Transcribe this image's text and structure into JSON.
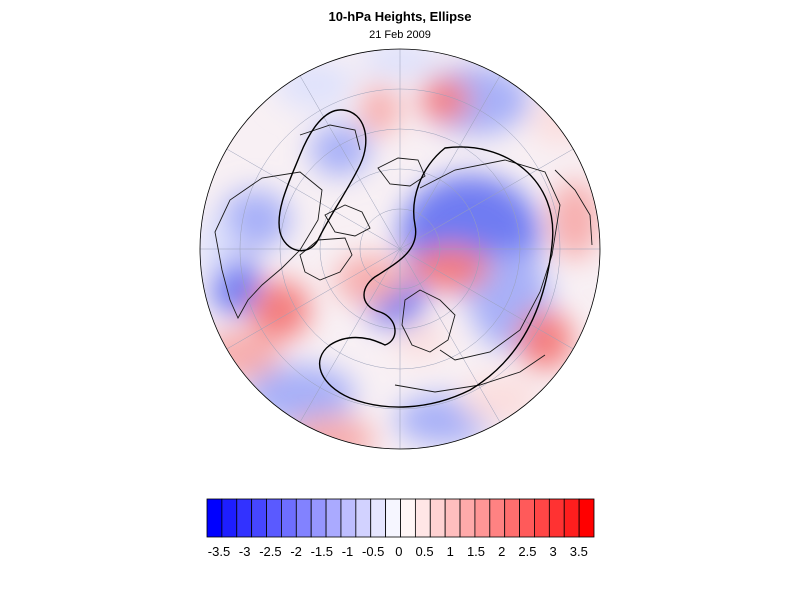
{
  "title": "10-hPa Heights, Ellipse",
  "subtitle": "21 Feb 2009",
  "colorbar": {
    "colors": [
      "#0000ff",
      "#1e1eff",
      "#3232ff",
      "#4646ff",
      "#5a5aff",
      "#6e6eff",
      "#8282ff",
      "#9696ff",
      "#aaaaff",
      "#bebeff",
      "#d2d2ff",
      "#e6e6ff",
      "#f6f6ff",
      "#fff6f6",
      "#ffe6e6",
      "#ffd2d2",
      "#ffbebe",
      "#ffaaaa",
      "#ff9696",
      "#ff8282",
      "#ff6e6e",
      "#ff5a5a",
      "#ff4646",
      "#ff3232",
      "#ff1e1e",
      "#ff0000"
    ],
    "tick_labels": [
      "-3.5",
      "-3",
      "-2.5",
      "-2",
      "-1.5",
      "-1",
      "-0.5",
      "0",
      "0.5",
      "1",
      "1.5",
      "2",
      "2.5",
      "3",
      "3.5"
    ]
  },
  "map": {
    "projection": "north polar stereographic",
    "field_colors": {
      "strong_blue": "#6f7bf2",
      "mid_blue": "#a7b0f8",
      "light_blue": "#dfe2fc",
      "strong_red": "#f47e7e",
      "mid_red": "#f7adad",
      "light_red": "#fbdede"
    }
  }
}
